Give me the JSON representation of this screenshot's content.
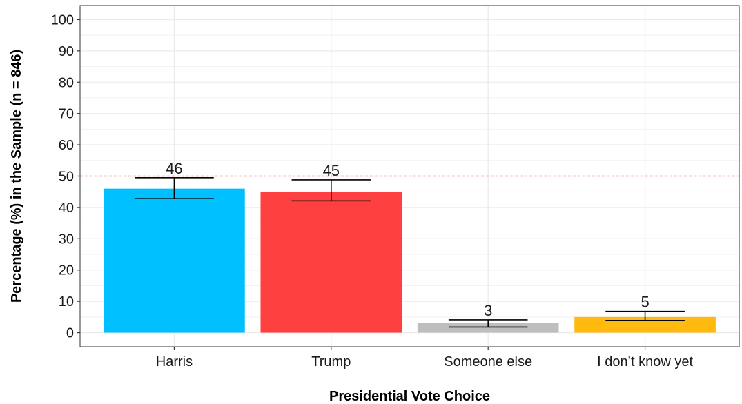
{
  "chart_data": {
    "type": "bar",
    "xlabel": "Presidential Vote Choice",
    "ylabel": "Percentage (%) in the Sample (n = 846)",
    "categories": [
      "Harris",
      "Trump",
      "Someone else",
      "I don’t know yet"
    ],
    "values": [
      46,
      45,
      3,
      5
    ],
    "data_labels": [
      "46",
      "45",
      "3",
      "5"
    ],
    "error_bars": [
      {
        "low": 42.8,
        "high": 49.5
      },
      {
        "low": 42.1,
        "high": 48.8
      },
      {
        "low": 1.8,
        "high": 4.1
      },
      {
        "low": 3.9,
        "high": 6.8
      }
    ],
    "colors": [
      "#00BFFF",
      "#FF4040",
      "#BEBEBE",
      "#FFB90F"
    ],
    "ylim": [
      -4.5,
      104.5
    ],
    "yticks": [
      0,
      10,
      20,
      30,
      40,
      50,
      60,
      70,
      80,
      90,
      100
    ],
    "ytick_labels": [
      "0",
      "10",
      "20",
      "30",
      "40",
      "50",
      "60",
      "70",
      "80",
      "90",
      "100"
    ],
    "reference_line": {
      "y": 50,
      "color": "#E8383D",
      "style": "dashed"
    },
    "grid": true,
    "legend": "none"
  }
}
